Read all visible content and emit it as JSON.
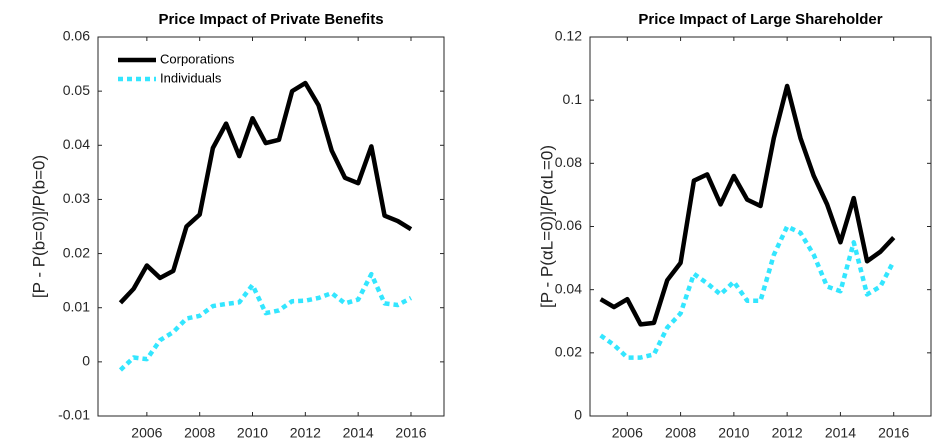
{
  "chart_data": [
    {
      "type": "line",
      "title": "Price Impact of Private Benefits",
      "ylabel": "[P - P(b=0)]/P(b=0)",
      "x": [
        2005,
        2005.5,
        2006,
        2006.5,
        2007,
        2007.5,
        2008,
        2008.5,
        2009,
        2009.5,
        2010,
        2010.5,
        2011,
        2011.5,
        2012,
        2012.5,
        2013,
        2013.5,
        2014,
        2014.5,
        2015,
        2015.5,
        2016
      ],
      "series": [
        {
          "name": "Corporations",
          "color": "#000000",
          "linestyle": "solid",
          "values": [
            0.0109,
            0.0135,
            0.0178,
            0.0155,
            0.0168,
            0.025,
            0.0272,
            0.0395,
            0.044,
            0.038,
            0.045,
            0.0404,
            0.041,
            0.05,
            0.0515,
            0.0474,
            0.039,
            0.034,
            0.033,
            0.0398,
            0.027,
            0.026,
            0.0245
          ]
        },
        {
          "name": "Individuals",
          "color": "#33e6ff",
          "linestyle": "dotted",
          "values": [
            -0.0015,
            0.0008,
            0.0005,
            0.004,
            0.0055,
            0.008,
            0.0085,
            0.0103,
            0.0107,
            0.011,
            0.0142,
            0.009,
            0.0095,
            0.0112,
            0.0113,
            0.0118,
            0.0127,
            0.0108,
            0.0115,
            0.0162,
            0.0108,
            0.0105,
            0.0118
          ]
        }
      ],
      "xlim": [
        2004.15,
        2017.25
      ],
      "xticks": [
        2006,
        2008,
        2010,
        2012,
        2014,
        2016
      ],
      "ylim": [
        -0.01,
        0.06
      ],
      "yticks": [
        -0.01,
        0,
        0.01,
        0.02,
        0.03,
        0.04,
        0.05,
        0.06
      ],
      "legend": "upper left"
    },
    {
      "type": "line",
      "title": "Price Impact of Large Shareholder",
      "ylabel": "[P - P(αL=0)]/P(αL=0)",
      "x": [
        2005,
        2005.5,
        2006,
        2006.5,
        2007,
        2007.5,
        2008,
        2008.5,
        2009,
        2009.5,
        2010,
        2010.5,
        2011,
        2011.5,
        2012,
        2012.5,
        2013,
        2013.5,
        2014,
        2014.5,
        2015,
        2015.5,
        2016
      ],
      "series": [
        {
          "color": "#000000",
          "linestyle": "solid",
          "values": [
            0.037,
            0.0345,
            0.037,
            0.029,
            0.0295,
            0.043,
            0.0485,
            0.0745,
            0.0765,
            0.067,
            0.076,
            0.0685,
            0.0665,
            0.088,
            0.1045,
            0.088,
            0.076,
            0.067,
            0.055,
            0.069,
            0.049,
            0.052,
            0.0565
          ]
        },
        {
          "color": "#33e6ff",
          "linestyle": "dotted",
          "values": [
            0.0255,
            0.0225,
            0.0185,
            0.0185,
            0.0195,
            0.028,
            0.0325,
            0.045,
            0.042,
            0.0385,
            0.0425,
            0.0365,
            0.0365,
            0.051,
            0.06,
            0.058,
            0.051,
            0.041,
            0.0395,
            0.055,
            0.0385,
            0.041,
            0.049
          ]
        }
      ],
      "xlim": [
        2004.6,
        2017.4
      ],
      "xticks": [
        2006,
        2008,
        2010,
        2012,
        2014,
        2016
      ],
      "ylim": [
        0,
        0.12
      ],
      "yticks": [
        0,
        0.02,
        0.04,
        0.06,
        0.08,
        0.1,
        0.12
      ]
    }
  ]
}
